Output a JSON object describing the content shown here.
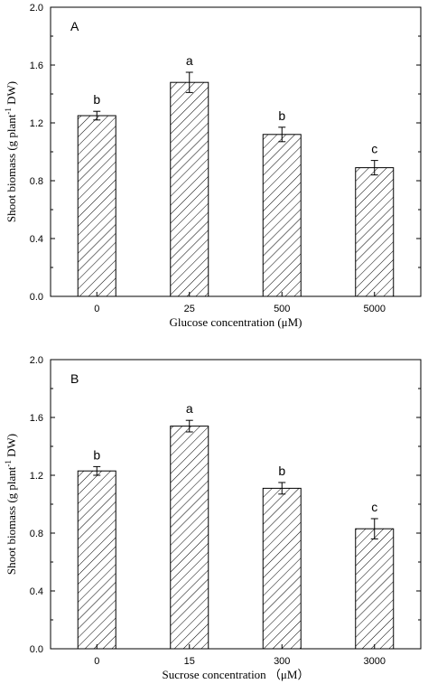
{
  "chart_data": [
    {
      "type": "bar",
      "panel_label": "A",
      "categories": [
        "0",
        "25",
        "500",
        "5000"
      ],
      "values": [
        1.25,
        1.48,
        1.12,
        0.89
      ],
      "errors": [
        0.03,
        0.07,
        0.05,
        0.05
      ],
      "significance": [
        "b",
        "a",
        "b",
        "c"
      ],
      "xlabel": "Glucose concentration (μM)",
      "ylabel_parts": {
        "pre": "Shoot biomass (g plant",
        "sup": "-1",
        "post": " DW)"
      },
      "ylim": [
        0,
        2.0
      ],
      "yticks": [
        "0.0",
        "0.4",
        "0.8",
        "1.2",
        "1.6",
        "2.0"
      ],
      "fill": "diagonal-hatch",
      "grid": false
    },
    {
      "type": "bar",
      "panel_label": "B",
      "categories": [
        "0",
        "15",
        "300",
        "3000"
      ],
      "values": [
        1.23,
        1.54,
        1.11,
        0.83
      ],
      "errors": [
        0.03,
        0.04,
        0.04,
        0.07
      ],
      "significance": [
        "b",
        "a",
        "b",
        "c"
      ],
      "xlabel": "Sucrose concentration （μM）",
      "ylabel_parts": {
        "pre": "Shoot biomass (g plant",
        "sup": "-1",
        "post": " DW)"
      },
      "ylim": [
        0,
        2.0
      ],
      "yticks": [
        "0.0",
        "0.4",
        "0.8",
        "1.2",
        "1.6",
        "2.0"
      ],
      "fill": "diagonal-hatch",
      "grid": false
    }
  ]
}
